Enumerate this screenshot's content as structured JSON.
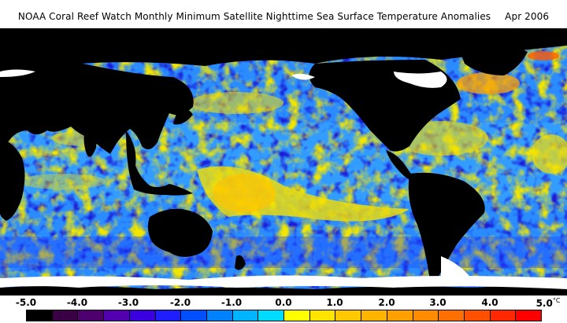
{
  "title": "NOAA Coral Reef Watch Monthly Minimum Satellite Nighttime Sea Surface Temperature Anomalies",
  "date": "Apr 2006",
  "legend": {
    "ticks": [
      "-5.0",
      "-4.0",
      "-3.0",
      "-2.0",
      "-1.0",
      "0.0",
      "1.0",
      "2.0",
      "3.0",
      "4.0",
      "5.0"
    ],
    "unit": "°C",
    "colors": [
      "#000000",
      "#3a0044",
      "#4d006e",
      "#5300b0",
      "#3a00e0",
      "#1e1eff",
      "#0050ff",
      "#0082ff",
      "#00b4ff",
      "#00dcff",
      "#ffff00",
      "#ffe400",
      "#ffc800",
      "#ffb400",
      "#ffa000",
      "#ff8c00",
      "#ff6e00",
      "#ff5000",
      "#ff2800",
      "#ff0000"
    ]
  },
  "map": {
    "land_color": "#000000",
    "ice_color": "#ffffff",
    "dominant_anomaly_color": "#2a8cff"
  }
}
